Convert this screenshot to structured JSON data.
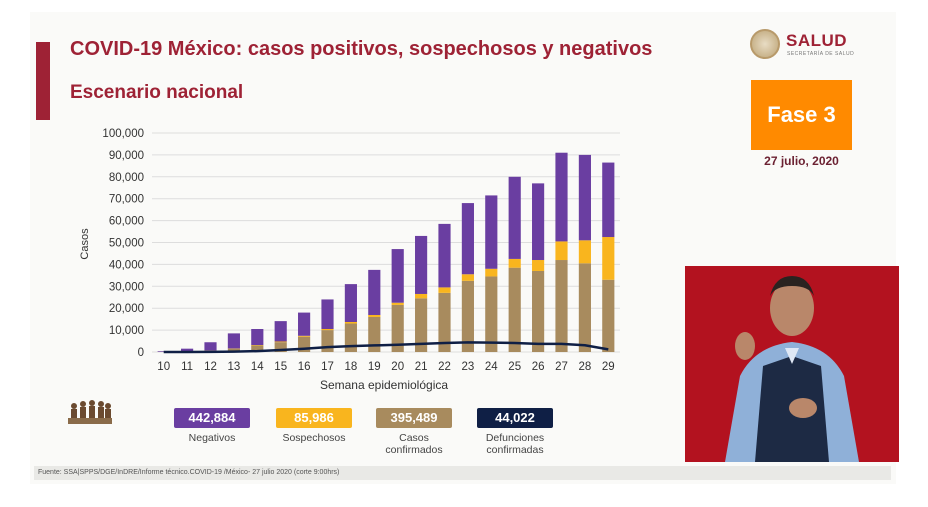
{
  "header": {
    "title": "COVID-19 México: casos positivos, sospechosos y negativos",
    "subtitle": "Escenario nacional"
  },
  "brand": {
    "name": "SALUD",
    "tagline": "SECRETARÍA DE SALUD"
  },
  "phase": {
    "label": "Fase 3",
    "date": "27 julio, 2020"
  },
  "colors": {
    "negativos": "#6a3ea1",
    "sospechosos": "#f9b51e",
    "confirmados": "#a88b5e",
    "defunciones": "#0f1f45",
    "accent": "#9e2235",
    "phase": "#ff8a00"
  },
  "chart_data": {
    "type": "bar",
    "stacked": true,
    "title": "",
    "xlabel": "Semana epidemiológica",
    "ylabel": "Casos",
    "ylim": [
      0,
      100000
    ],
    "yticks": [
      "0",
      "10,000",
      "20,000",
      "30,000",
      "40,000",
      "50,000",
      "60,000",
      "70,000",
      "80,000",
      "90,000",
      "100,000"
    ],
    "grid": true,
    "categories": [
      "10",
      "11",
      "12",
      "13",
      "14",
      "15",
      "16",
      "17",
      "18",
      "19",
      "20",
      "21",
      "22",
      "23",
      "24",
      "25",
      "26",
      "27",
      "28",
      "29"
    ],
    "series": [
      {
        "name": "Casos confirmados",
        "values": [
          50,
          200,
          700,
          1500,
          3000,
          4500,
          7000,
          10000,
          13000,
          16000,
          21500,
          24500,
          27000,
          32500,
          34500,
          38500,
          37000,
          42000,
          40500,
          33000
        ]
      },
      {
        "name": "Sospechosos",
        "values": [
          5,
          20,
          50,
          100,
          200,
          300,
          400,
          500,
          700,
          900,
          1000,
          2000,
          2500,
          3000,
          3500,
          4000,
          5000,
          8500,
          10500,
          19500
        ]
      },
      {
        "name": "Negativos",
        "values": [
          300,
          1300,
          3700,
          6900,
          7300,
          9300,
          10600,
          13500,
          17300,
          20600,
          24500,
          26500,
          29000,
          32500,
          33500,
          37500,
          35000,
          40500,
          39000,
          34000
        ]
      }
    ],
    "line": {
      "name": "Defunciones confirmadas",
      "values": [
        0,
        20,
        60,
        150,
        400,
        900,
        1500,
        2200,
        2700,
        3000,
        3300,
        3700,
        4100,
        4400,
        4300,
        4100,
        3700,
        3700,
        3100,
        1200
      ]
    }
  },
  "legend": [
    {
      "value": "442,884",
      "label": "Negativos"
    },
    {
      "value": "85,986",
      "label": "Sospechosos"
    },
    {
      "value": "395,489",
      "label": "Casos confirmados"
    },
    {
      "value": "44,022",
      "label": "Defunciones confirmadas"
    }
  ],
  "footer": {
    "source": "Fuente: SSA|SPPS/DGE/InDRE/Informe técnico.COVID-19 /México- 27 julio 2020 (corte 9:00hrs)"
  }
}
